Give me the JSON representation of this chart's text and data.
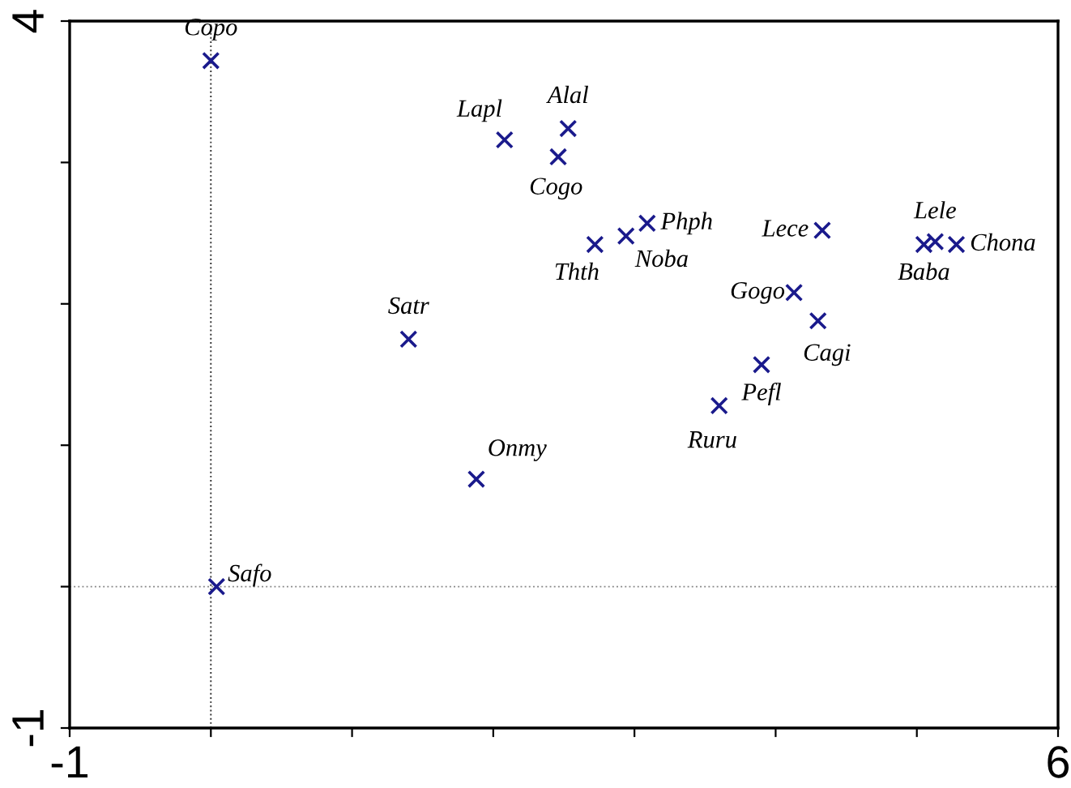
{
  "chart_data": {
    "type": "scatter",
    "x": [
      0.0,
      2.08,
      2.53,
      2.46,
      3.09,
      2.94,
      2.72,
      4.33,
      5.05,
      5.13,
      5.28,
      4.13,
      4.3,
      1.4,
      3.9,
      3.6,
      1.88,
      0.04
    ],
    "series": [
      {
        "color": "#1a1a8c",
        "values": [
          3.72,
          3.16,
          3.24,
          3.04,
          2.57,
          2.48,
          2.42,
          2.52,
          2.42,
          2.44,
          2.42,
          2.08,
          1.88,
          1.75,
          1.57,
          1.28,
          0.76,
          0.0
        ]
      }
    ],
    "marker": "cross",
    "grid": false,
    "legend": false,
    "xlim": [
      -1,
      6
    ],
    "xticks": [
      -1,
      {
        "value": 0,
        "label": null
      },
      {
        "value": 1,
        "label": null
      },
      {
        "value": 2,
        "label": null
      },
      {
        "value": 3,
        "label": null
      },
      {
        "value": 4,
        "label": null
      },
      {
        "value": 5,
        "label": null
      },
      6
    ],
    "ylim": [
      -1,
      4
    ],
    "yticks": [
      -1,
      {
        "value": 0,
        "label": null
      },
      {
        "value": 1,
        "label": null
      },
      {
        "value": 2,
        "label": null
      },
      {
        "value": 3,
        "label": null
      },
      4
    ],
    "ref_lines": [
      {
        "axis": "x",
        "value": 0,
        "line_style": "dotted",
        "color": "#333333"
      },
      {
        "axis": "y",
        "value": 0,
        "line_style": "dotted",
        "color": "#888888"
      }
    ],
    "annotations": [
      {
        "text": "Copo",
        "x": 0.0,
        "y": 3.72
      },
      {
        "text": "Lapl",
        "x": 2.08,
        "y": 3.16
      },
      {
        "text": "Alal",
        "x": 2.53,
        "y": 3.24
      },
      {
        "text": "Cogo",
        "x": 2.46,
        "y": 3.04
      },
      {
        "text": "Phph",
        "x": 3.09,
        "y": 2.57
      },
      {
        "text": "Noba",
        "x": 2.94,
        "y": 2.48
      },
      {
        "text": "Thth",
        "x": 2.72,
        "y": 2.42
      },
      {
        "text": "Lece",
        "x": 4.33,
        "y": 2.52
      },
      {
        "text": "Baba",
        "x": 5.05,
        "y": 2.42
      },
      {
        "text": "Lele",
        "x": 5.13,
        "y": 2.44
      },
      {
        "text": "Chona",
        "x": 5.28,
        "y": 2.42
      },
      {
        "text": "Gogo",
        "x": 4.13,
        "y": 2.08
      },
      {
        "text": "Cagi",
        "x": 4.3,
        "y": 1.88
      },
      {
        "text": "Satr",
        "x": 1.4,
        "y": 1.75
      },
      {
        "text": "Pefl",
        "x": 3.9,
        "y": 1.57
      },
      {
        "text": "Ruru",
        "x": 3.6,
        "y": 1.28
      },
      {
        "text": "Onmy",
        "x": 1.88,
        "y": 0.76
      },
      {
        "text": "Safo",
        "x": 0.04,
        "y": 0.0
      }
    ]
  }
}
